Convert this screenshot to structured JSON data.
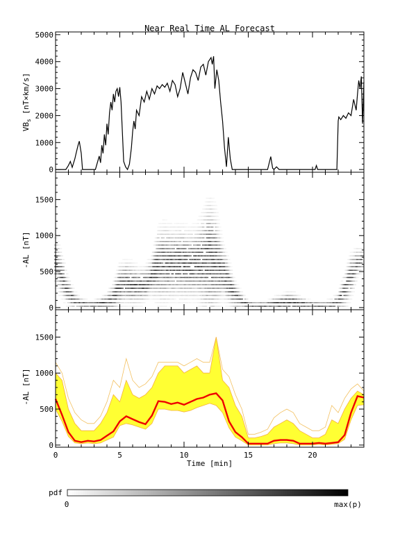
{
  "figure": {
    "title": "Near Real Time AL Forecast"
  },
  "chart_data": [
    {
      "panel": "top",
      "type": "line",
      "ylabel": "VBs [nT×km/s]",
      "ylabel_main": "VB",
      "ylabel_sub": "s",
      "ylabel_rest": " [nT×km/s]",
      "xlim": [
        0,
        24
      ],
      "ylim": [
        -100,
        5100
      ],
      "yticks": [
        0,
        1000,
        2000,
        3000,
        4000,
        5000
      ],
      "xticks": [
        0,
        5,
        10,
        15,
        20
      ],
      "x_tick_labels_shown": false,
      "series": [
        {
          "color": "#000000",
          "x": [
            0,
            0.8,
            1.0,
            1.15,
            1.3,
            1.5,
            1.6,
            1.75,
            1.85,
            2.0,
            2.1,
            2.3,
            3.1,
            3.4,
            3.5,
            3.6,
            3.7,
            3.8,
            3.9,
            4.0,
            4.1,
            4.2,
            4.3,
            4.4,
            4.5,
            4.6,
            4.7,
            4.8,
            4.9,
            5.0,
            5.1,
            5.2,
            5.3,
            5.45,
            5.6,
            5.75,
            5.9,
            6.0,
            6.1,
            6.2,
            6.3,
            6.5,
            6.7,
            6.9,
            7.1,
            7.3,
            7.5,
            7.7,
            7.9,
            8.1,
            8.3,
            8.5,
            8.7,
            8.9,
            9.1,
            9.3,
            9.5,
            9.7,
            9.9,
            10.1,
            10.3,
            10.5,
            10.7,
            10.9,
            11.1,
            11.3,
            11.5,
            11.7,
            11.9,
            12.1,
            12.2,
            12.3,
            12.4,
            12.55,
            12.7,
            12.85,
            13.0,
            13.15,
            13.3,
            13.45,
            13.6,
            13.75,
            13.9,
            14.1,
            16.5,
            16.75,
            16.9,
            17.0,
            17.2,
            17.4,
            17.8,
            20.2,
            20.3,
            20.4,
            21.8,
            21.9,
            22.0,
            22.05,
            22.2,
            22.4,
            22.6,
            22.8,
            23.0,
            23.2,
            23.4,
            23.5,
            23.6,
            23.7,
            23.8,
            23.9,
            24.0
          ],
          "y": [
            0,
            0,
            150,
            300,
            80,
            400,
            600,
            900,
            1050,
            600,
            0,
            0,
            0,
            500,
            250,
            900,
            600,
            1300,
            900,
            1700,
            1300,
            2100,
            2500,
            2200,
            2800,
            2500,
            2900,
            3000,
            2700,
            3050,
            2500,
            1400,
            300,
            100,
            0,
            200,
            800,
            1400,
            1800,
            1500,
            2200,
            2000,
            2700,
            2500,
            2900,
            2600,
            3000,
            2800,
            3100,
            3000,
            3150,
            3050,
            3200,
            2900,
            3300,
            3150,
            2700,
            3000,
            3600,
            3200,
            2800,
            3400,
            3700,
            3600,
            3300,
            3800,
            3900,
            3500,
            4000,
            4150,
            3900,
            4200,
            3000,
            3700,
            3300,
            2500,
            1800,
            800,
            100,
            1200,
            400,
            0,
            0,
            0,
            0,
            480,
            50,
            0,
            100,
            0,
            0,
            0,
            150,
            0,
            0,
            0,
            1800,
            1950,
            1850,
            2000,
            1900,
            2100,
            2000,
            2600,
            2200,
            2800,
            3300,
            3000,
            3450,
            1700,
            3250
          ]
        }
      ]
    },
    {
      "panel": "middle",
      "type": "heatmap",
      "ylabel": "-AL [nT]",
      "xlim": [
        0,
        24
      ],
      "ylim": [
        -30,
        1880
      ],
      "yticks": [
        0,
        500,
        1000,
        1500
      ],
      "xticks": [
        0,
        5,
        10,
        15,
        20
      ],
      "x_tick_labels_shown": false,
      "x": [
        0,
        0.5,
        1.0,
        1.5,
        2.0,
        2.5,
        3.0,
        3.5,
        4.0,
        4.5,
        5.0,
        5.5,
        6.0,
        6.5,
        7.0,
        7.5,
        8.0,
        8.5,
        9.0,
        9.5,
        10.0,
        10.5,
        11.0,
        11.5,
        12.0,
        12.5,
        13.0,
        13.5,
        14.0,
        14.5,
        15.0,
        15.5,
        16.0,
        16.5,
        17.0,
        17.5,
        18.0,
        18.5,
        19.0,
        19.5,
        20.0,
        20.5,
        21.0,
        21.5,
        22.0,
        22.5,
        23.0,
        23.5,
        24.0
      ],
      "center": [
        650,
        420,
        200,
        80,
        40,
        30,
        30,
        40,
        60,
        120,
        280,
        330,
        300,
        280,
        300,
        420,
        560,
        580,
        590,
        600,
        590,
        580,
        600,
        620,
        640,
        620,
        500,
        320,
        150,
        80,
        20,
        20,
        20,
        20,
        30,
        40,
        60,
        60,
        40,
        30,
        20,
        20,
        20,
        30,
        60,
        200,
        420,
        600,
        660
      ],
      "spread": [
        350,
        300,
        200,
        120,
        80,
        60,
        60,
        80,
        120,
        200,
        300,
        300,
        300,
        250,
        250,
        280,
        500,
        550,
        500,
        500,
        500,
        480,
        500,
        650,
        850,
        700,
        400,
        300,
        200,
        120,
        60,
        60,
        60,
        60,
        100,
        120,
        140,
        140,
        100,
        80,
        60,
        60,
        60,
        80,
        120,
        250,
        300,
        200,
        150
      ],
      "colorbar": {
        "label": "pdf",
        "min_label": "0",
        "max_label": "max(p)"
      }
    },
    {
      "panel": "bottom",
      "type": "area",
      "ylabel": "-AL [nT]",
      "xlabel": "Time [min]",
      "xlim": [
        0,
        24
      ],
      "ylim": [
        -30,
        1880
      ],
      "yticks": [
        0,
        500,
        1000,
        1500
      ],
      "xticks": [
        0,
        5,
        10,
        15,
        20
      ],
      "x": [
        0,
        0.5,
        1.0,
        1.5,
        2.0,
        2.5,
        3.0,
        3.5,
        4.0,
        4.5,
        5.0,
        5.5,
        6.0,
        6.5,
        7.0,
        7.5,
        8.0,
        8.5,
        9.0,
        9.5,
        10.0,
        10.5,
        11.0,
        11.5,
        12.0,
        12.5,
        13.0,
        13.5,
        14.0,
        14.5,
        15.0,
        15.5,
        16.0,
        16.5,
        17.0,
        17.5,
        18.0,
        18.5,
        19.0,
        19.5,
        20.0,
        20.5,
        21.0,
        21.5,
        22.0,
        22.5,
        23.0,
        23.5,
        24.0
      ],
      "series": [
        {
          "color": "#ee0000",
          "y": [
            640,
            420,
            180,
            60,
            40,
            60,
            50,
            70,
            130,
            190,
            330,
            400,
            360,
            320,
            290,
            410,
            610,
            600,
            570,
            590,
            560,
            600,
            640,
            660,
            700,
            720,
            620,
            330,
            180,
            110,
            20,
            20,
            20,
            20,
            60,
            70,
            70,
            60,
            20,
            20,
            20,
            30,
            20,
            30,
            40,
            140,
            450,
            680,
            660
          ]
        }
      ],
      "band_upper": [
        1000,
        900,
        500,
        300,
        200,
        200,
        200,
        300,
        450,
        700,
        600,
        900,
        700,
        650,
        700,
        800,
        1000,
        1100,
        1100,
        1100,
        1000,
        1050,
        1100,
        1000,
        1000,
        1500,
        900,
        800,
        550,
        400,
        100,
        100,
        120,
        150,
        250,
        300,
        350,
        300,
        200,
        150,
        100,
        100,
        150,
        350,
        300,
        500,
        650,
        750,
        700
      ],
      "band_lower": [
        500,
        330,
        120,
        30,
        20,
        30,
        20,
        30,
        70,
        110,
        270,
        300,
        280,
        250,
        220,
        300,
        500,
        500,
        480,
        480,
        460,
        480,
        520,
        550,
        580,
        550,
        450,
        240,
        110,
        60,
        0,
        0,
        0,
        0,
        20,
        30,
        30,
        20,
        0,
        0,
        0,
        10,
        0,
        10,
        20,
        80,
        350,
        550,
        560
      ],
      "envelope": [
        1150,
        1000,
        650,
        450,
        350,
        300,
        300,
        400,
        600,
        900,
        800,
        1200,
        900,
        800,
        850,
        950,
        1150,
        1150,
        1150,
        1150,
        1100,
        1150,
        1200,
        1150,
        1150,
        1500,
        1050,
        950,
        700,
        500,
        150,
        150,
        180,
        220,
        380,
        450,
        500,
        450,
        300,
        250,
        200,
        200,
        250,
        550,
        450,
        650,
        780,
        850,
        750
      ]
    }
  ]
}
